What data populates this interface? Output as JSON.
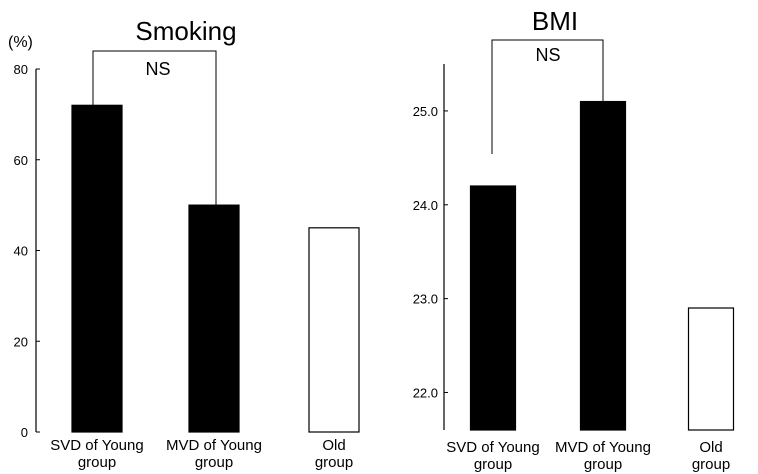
{
  "chart_data": [
    {
      "type": "bar",
      "title": "Smoking",
      "ylabel": "(%)",
      "ylim": [
        0,
        80
      ],
      "yticks": [
        "0",
        "20",
        "40",
        "60",
        "80"
      ],
      "categories": [
        "SVD of Young\ngroup",
        "MVD of Young\ngroup",
        "Old\ngroup"
      ],
      "values": [
        72,
        50,
        45
      ],
      "bar_fills": [
        "#000000",
        "#000000",
        "#ffffff"
      ],
      "annotation": "NS"
    },
    {
      "type": "bar",
      "title": "BMI",
      "ylabel": "",
      "ylim": [
        21.6,
        25.5
      ],
      "yticks": [
        "22.0",
        "23.0",
        "24.0",
        "25.0"
      ],
      "categories": [
        "SVD of Young\ngroup",
        "MVD of Young\ngroup",
        "Old\ngroup"
      ],
      "values": [
        24.2,
        25.1,
        22.9
      ],
      "bar_fills": [
        "#000000",
        "#000000",
        "#ffffff"
      ],
      "annotation": "NS"
    }
  ]
}
